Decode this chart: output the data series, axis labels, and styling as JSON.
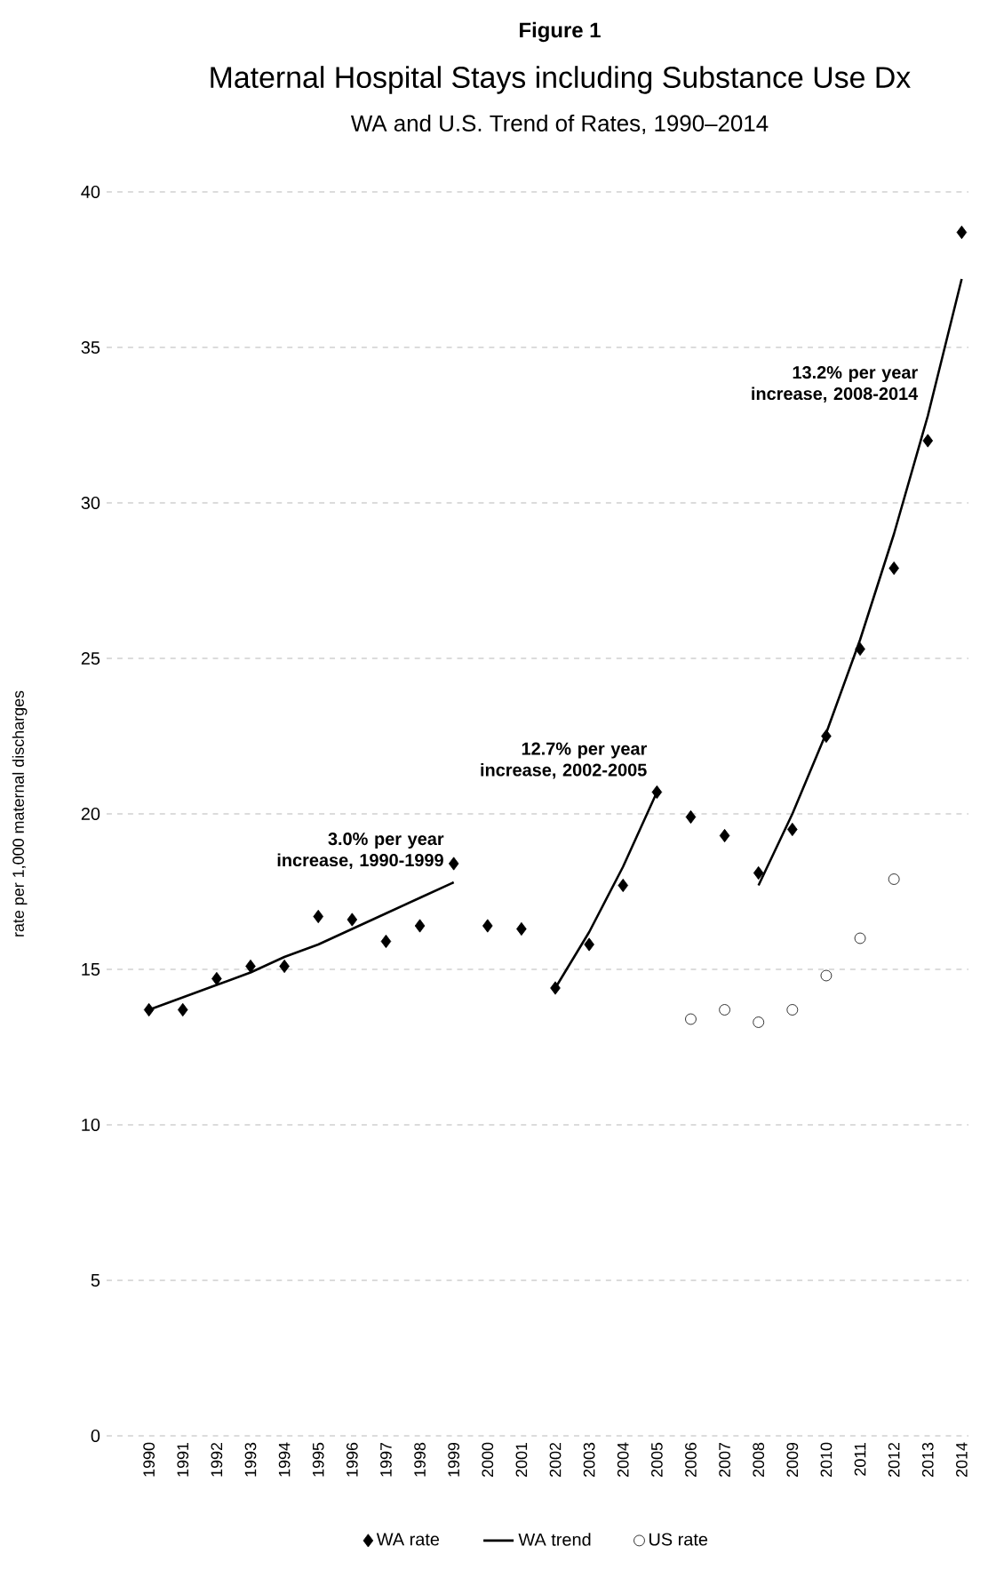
{
  "chart_data": {
    "type": "scatter",
    "title": "Maternal Hospital Stays including Substance Use Dx",
    "subtitle": "WA and U.S. Trend of Rates, 1990–2014",
    "ylabel": "rate per 1,000 maternal discharges",
    "categories": [
      "1990",
      "1991",
      "1992",
      "1993",
      "1994",
      "1995",
      "1996",
      "1997",
      "1998",
      "1999",
      "2000",
      "2001",
      "2002",
      "2003",
      "2004",
      "2005",
      "2006",
      "2007",
      "2008",
      "2009",
      "2010",
      "2011",
      "2012",
      "2013",
      "2014"
    ],
    "series": [
      {
        "name": "WA rate",
        "marker": "diamond",
        "color": "#000000",
        "values": [
          13.7,
          13.7,
          14.7,
          15.1,
          15.1,
          16.7,
          16.6,
          15.9,
          16.4,
          18.4,
          16.4,
          16.3,
          14.4,
          15.8,
          17.7,
          20.7,
          19.9,
          19.3,
          18.1,
          19.5,
          22.5,
          25.3,
          27.9,
          32.0,
          38.7
        ]
      },
      {
        "name": "WA trend",
        "type": "line",
        "marker": "none",
        "color": "#000000",
        "values": [
          13.7,
          14.1,
          14.5,
          14.9,
          15.4,
          15.8,
          16.3,
          16.8,
          17.3,
          17.8,
          null,
          null,
          14.4,
          16.2,
          18.3,
          20.7,
          null,
          null,
          17.7,
          20.0,
          22.6,
          25.6,
          29.0,
          32.8,
          37.2
        ]
      },
      {
        "name": "US rate",
        "marker": "circle",
        "color": "#000000",
        "values": [
          null,
          null,
          null,
          null,
          null,
          null,
          null,
          null,
          null,
          null,
          null,
          null,
          null,
          null,
          null,
          null,
          13.4,
          13.7,
          13.3,
          13.7,
          14.8,
          16.0,
          17.9,
          null,
          null
        ]
      }
    ],
    "ylim": [
      0,
      40
    ],
    "yticks": [
      0,
      5,
      10,
      15,
      20,
      25,
      30,
      35,
      40
    ],
    "grid": "y",
    "legend": "bottom",
    "annotations": [
      "Figure 1",
      {
        "text": "3.0% per year increase, 1990-1999",
        "x": "1999",
        "y": 17.8
      },
      {
        "text": "12.7% per year increase, 2002-2005",
        "x": "2005",
        "y": 20.7
      },
      {
        "text": "13.2% per year increase, 2008-2014",
        "x": "2013",
        "y": 32.8
      }
    ]
  }
}
